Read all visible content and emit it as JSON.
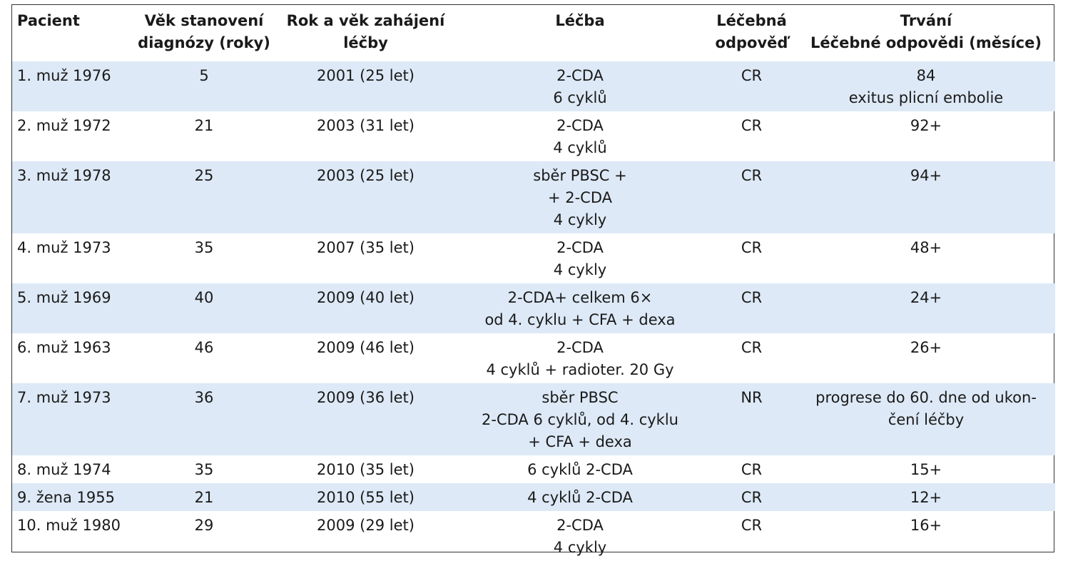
{
  "table": {
    "headers": [
      "Pacient",
      "Věk stanovení\ndiagnózy (roky)",
      "Rok a věk zahájení\nléčby",
      "Léčba",
      "Léčebná\nodpověď",
      "Trvání\nLéčebné odpovědi (měsíce)"
    ],
    "rows": [
      [
        "1. muž 1976",
        "5",
        "2001 (25 let)",
        "2-CDA\n6 cyklů",
        "CR",
        "84\nexitus plicní embolie"
      ],
      [
        "2. muž 1972",
        "21",
        "2003 (31 let)",
        "2-CDA\n4 cyklů",
        "CR",
        "92+"
      ],
      [
        "3. muž 1978",
        "25",
        "2003 (25 let)",
        "sběr PBSC +\n+ 2-CDA\n4 cykly",
        "CR",
        "94+"
      ],
      [
        "4. muž 1973",
        "35",
        "2007 (35 let)",
        "2-CDA\n4 cykly",
        "CR",
        "48+"
      ],
      [
        "5. muž 1969",
        "40",
        "2009 (40 let)",
        "2-CDA+ celkem 6×\nod 4. cyklu + CFA + dexa",
        "CR",
        "24+"
      ],
      [
        "6. muž 1963",
        "46",
        "2009 (46 let)",
        "2-CDA\n4 cyklů + radioter. 20 Gy",
        "CR",
        "26+"
      ],
      [
        "7. muž 1973",
        "36",
        "2009 (36 let)",
        "sběr PBSC\n2-CDA 6 cyklů, od 4. cyklu\n+ CFA + dexa",
        "NR",
        "progrese do 60. dne od ukon-\nčení léčby"
      ],
      [
        "8. muž 1974",
        "35",
        "2010 (35 let)",
        "6 cyklů 2-CDA",
        "CR",
        "15+"
      ],
      [
        "9. žena 1955",
        "21",
        "2010 (55 let)",
        "4 cyklů 2-CDA",
        "CR",
        "12+"
      ],
      [
        "10. muž 1980",
        "29",
        "2009 (29 let)",
        "2-CDA\n4 cykly",
        "CR",
        "16+"
      ]
    ],
    "shade_color": "#dde9f6"
  }
}
